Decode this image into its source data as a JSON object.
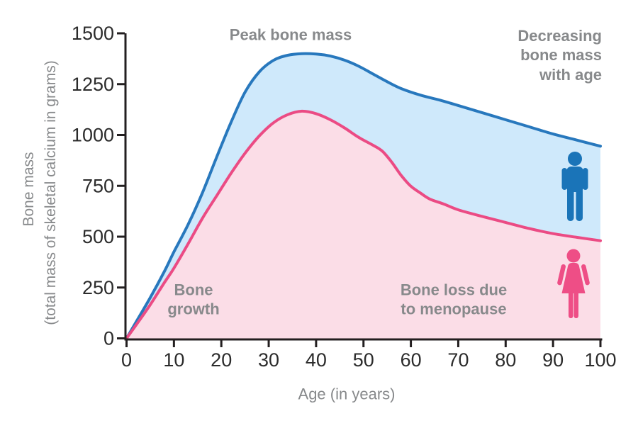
{
  "colors": {
    "male_line": "#2878bd",
    "male_fill": "#cfe9fb",
    "male_icon": "#1a74b8",
    "female_line": "#eb4b84",
    "female_fill": "#fbdde7",
    "female_icon": "#ee4e86",
    "axis": "#231f20",
    "tick_label": "#2b2b2b",
    "annotation": "#87898b"
  },
  "chart_data": {
    "type": "area",
    "title": "",
    "xlabel": "Age (in years)",
    "ylabel_line1": "Bone mass",
    "ylabel_line2": "(total mass of skeletal calcium in grams)",
    "xlim": [
      0,
      100
    ],
    "ylim": [
      0,
      1500
    ],
    "grid": false,
    "legend_position": "none",
    "x_tick_values": [
      0,
      10,
      20,
      30,
      40,
      50,
      60,
      70,
      80,
      90,
      100
    ],
    "x_tick_labels": [
      "0",
      "10",
      "20",
      "30",
      "40",
      "50",
      "60",
      "70",
      "80",
      "90",
      "100"
    ],
    "y_tick_values": [
      0,
      250,
      500,
      750,
      1000,
      1250,
      1500
    ],
    "y_tick_labels": [
      "0",
      "250",
      "500",
      "750",
      "1000",
      "1250",
      "1500"
    ],
    "annotations": {
      "peak": "Peak bone mass",
      "decreasing": "Decreasing\nbone mass\nwith age",
      "growth": "Bone\ngrowth",
      "loss": "Bone loss due\nto menopause"
    },
    "series": [
      {
        "name": "Male bone mass",
        "color_key": "male",
        "points": [
          [
            0,
            0
          ],
          [
            2,
            80
          ],
          [
            5,
            200
          ],
          [
            8,
            330
          ],
          [
            10,
            425
          ],
          [
            13,
            560
          ],
          [
            16,
            715
          ],
          [
            19,
            890
          ],
          [
            22,
            1060
          ],
          [
            25,
            1210
          ],
          [
            28,
            1310
          ],
          [
            31,
            1367
          ],
          [
            34,
            1392
          ],
          [
            37,
            1400
          ],
          [
            40,
            1398
          ],
          [
            43,
            1388
          ],
          [
            46,
            1368
          ],
          [
            49,
            1338
          ],
          [
            52,
            1300
          ],
          [
            55,
            1262
          ],
          [
            58,
            1228
          ],
          [
            62,
            1196
          ],
          [
            66,
            1172
          ],
          [
            70,
            1145
          ],
          [
            75,
            1110
          ],
          [
            80,
            1075
          ],
          [
            85,
            1040
          ],
          [
            90,
            1005
          ],
          [
            95,
            975
          ],
          [
            100,
            945
          ]
        ]
      },
      {
        "name": "Female bone mass",
        "color_key": "female",
        "points": [
          [
            0,
            0
          ],
          [
            2,
            65
          ],
          [
            5,
            165
          ],
          [
            8,
            275
          ],
          [
            10,
            345
          ],
          [
            13,
            465
          ],
          [
            16,
            590
          ],
          [
            19,
            700
          ],
          [
            22,
            810
          ],
          [
            25,
            910
          ],
          [
            28,
            995
          ],
          [
            31,
            1060
          ],
          [
            34,
            1100
          ],
          [
            37,
            1117
          ],
          [
            40,
            1105
          ],
          [
            43,
            1075
          ],
          [
            46,
            1035
          ],
          [
            49,
            988
          ],
          [
            52,
            950
          ],
          [
            54,
            920
          ],
          [
            56,
            865
          ],
          [
            58,
            800
          ],
          [
            60,
            748
          ],
          [
            62,
            715
          ],
          [
            64,
            685
          ],
          [
            67,
            660
          ],
          [
            70,
            632
          ],
          [
            75,
            600
          ],
          [
            80,
            570
          ],
          [
            85,
            540
          ],
          [
            90,
            515
          ],
          [
            95,
            497
          ],
          [
            100,
            480
          ]
        ]
      }
    ]
  }
}
